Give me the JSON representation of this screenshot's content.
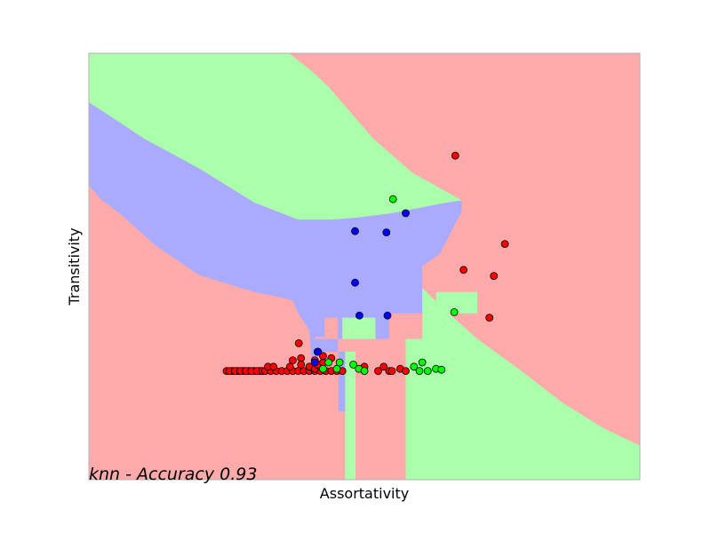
{
  "chart_data": {
    "type": "scatter",
    "title": "",
    "xlabel": "Assortativity",
    "ylabel": "Transitivity",
    "annotation": "knn - Accuracy 0.93",
    "xlim": [
      0,
      1
    ],
    "ylim": [
      0,
      1
    ],
    "xticks": "none",
    "yticks": "none",
    "grid": false,
    "legend": "none",
    "colors": {
      "red_region": "#FFAAAA",
      "green_region": "#AAFFAA",
      "blue_region": "#AAAAFF",
      "red_points": "#FF0000",
      "green_points": "#00FF00",
      "blue_points": "#0000FF",
      "axes_edge": "#B0B0B0"
    },
    "decision_regions": [
      {
        "class": "green",
        "polygon": [
          [
            0,
            1
          ],
          [
            0.363,
            1
          ],
          [
            0.403,
            0.96
          ],
          [
            0.436,
            0.92
          ],
          [
            0.476,
            0.86
          ],
          [
            0.516,
            0.8
          ],
          [
            0.587,
            0.72
          ],
          [
            0.677,
            0.655
          ],
          [
            0.65,
            0.65
          ],
          [
            0.55,
            0.625
          ],
          [
            0.49,
            0.615
          ],
          [
            0.44,
            0.61
          ],
          [
            0.38,
            0.61
          ],
          [
            0.3,
            0.65
          ],
          [
            0.2,
            0.73
          ],
          [
            0.1,
            0.8
          ],
          [
            0.03,
            0.86
          ],
          [
            0,
            0.885
          ]
        ]
      },
      {
        "class": "blue",
        "polygon": [
          [
            0,
            0.885
          ],
          [
            0.03,
            0.86
          ],
          [
            0.1,
            0.8
          ],
          [
            0.2,
            0.73
          ],
          [
            0.3,
            0.65
          ],
          [
            0.38,
            0.61
          ],
          [
            0.44,
            0.61
          ],
          [
            0.49,
            0.615
          ],
          [
            0.55,
            0.625
          ],
          [
            0.65,
            0.65
          ],
          [
            0.677,
            0.655
          ],
          [
            0.677,
            0.63
          ],
          [
            0.661,
            0.59
          ],
          [
            0.637,
            0.53
          ],
          [
            0.605,
            0.5
          ],
          [
            0.605,
            0.39
          ],
          [
            0.545,
            0.39
          ],
          [
            0.545,
            0.33
          ],
          [
            0.452,
            0.33
          ],
          [
            0.452,
            0.38
          ],
          [
            0.428,
            0.38
          ],
          [
            0.428,
            0.335
          ],
          [
            0.41,
            0.335
          ],
          [
            0.41,
            0.33
          ],
          [
            0.452,
            0.33
          ],
          [
            0.452,
            0.3
          ],
          [
            0.415,
            0.3
          ],
          [
            0.415,
            0.265
          ],
          [
            0.405,
            0.265
          ],
          [
            0.4,
            0.35
          ],
          [
            0.38,
            0.39
          ],
          [
            0.37,
            0.42
          ],
          [
            0.34,
            0.43
          ],
          [
            0.3,
            0.44
          ],
          [
            0.2,
            0.48
          ],
          [
            0.12,
            0.55
          ],
          [
            0.06,
            0.62
          ],
          [
            0.02,
            0.66
          ],
          [
            0,
            0.69
          ]
        ]
      },
      {
        "class": "green",
        "polygon": [
          [
            0.605,
            0.5
          ],
          [
            0.605,
            0.45
          ],
          [
            0.645,
            0.4
          ],
          [
            0.705,
            0.33
          ],
          [
            0.78,
            0.26
          ],
          [
            0.86,
            0.18
          ],
          [
            0.935,
            0.12
          ],
          [
            1,
            0.08
          ],
          [
            1,
            0
          ],
          [
            0.575,
            0
          ],
          [
            0.575,
            0.33
          ],
          [
            0.605,
            0.33
          ],
          [
            0.605,
            0.39
          ],
          [
            0.63,
            0.39
          ],
          [
            0.63,
            0.44
          ],
          [
            0.705,
            0.44
          ],
          [
            0.705,
            0.39
          ],
          [
            0.605,
            0.39
          ]
        ]
      },
      {
        "class": "green",
        "polygon": [
          [
            0.465,
            0.3
          ],
          [
            0.465,
            0
          ],
          [
            0.484,
            0
          ],
          [
            0.484,
            0.3
          ]
        ]
      },
      {
        "class": "green",
        "polygon": [
          [
            0.46,
            0.33
          ],
          [
            0.46,
            0.38
          ],
          [
            0.52,
            0.38
          ],
          [
            0.52,
            0.33
          ]
        ]
      },
      {
        "class": "blue",
        "polygon": [
          [
            0.453,
            0.3
          ],
          [
            0.453,
            0.16
          ],
          [
            0.465,
            0.16
          ],
          [
            0.465,
            0.3
          ]
        ]
      }
    ],
    "series": [
      {
        "class": "red",
        "points": [
          [
            0.25,
            0.255
          ],
          [
            0.26,
            0.255
          ],
          [
            0.27,
            0.255
          ],
          [
            0.28,
            0.255
          ],
          [
            0.29,
            0.255
          ],
          [
            0.3,
            0.255
          ],
          [
            0.31,
            0.255
          ],
          [
            0.255,
            0.255
          ],
          [
            0.265,
            0.255
          ],
          [
            0.275,
            0.255
          ],
          [
            0.285,
            0.255
          ],
          [
            0.295,
            0.255
          ],
          [
            0.305,
            0.255
          ],
          [
            0.315,
            0.255
          ],
          [
            0.32,
            0.255
          ],
          [
            0.33,
            0.255
          ],
          [
            0.34,
            0.255
          ],
          [
            0.35,
            0.255
          ],
          [
            0.36,
            0.255
          ],
          [
            0.37,
            0.255
          ],
          [
            0.38,
            0.255
          ],
          [
            0.39,
            0.255
          ],
          [
            0.4,
            0.255
          ],
          [
            0.41,
            0.255
          ],
          [
            0.42,
            0.255
          ],
          [
            0.43,
            0.255
          ],
          [
            0.44,
            0.255
          ],
          [
            0.45,
            0.255
          ],
          [
            0.46,
            0.255
          ],
          [
            0.325,
            0.265
          ],
          [
            0.335,
            0.265
          ],
          [
            0.365,
            0.265
          ],
          [
            0.4,
            0.265
          ],
          [
            0.41,
            0.26
          ],
          [
            0.42,
            0.265
          ],
          [
            0.415,
            0.27
          ],
          [
            0.425,
            0.275
          ],
          [
            0.37,
            0.28
          ],
          [
            0.385,
            0.285
          ],
          [
            0.41,
            0.28
          ],
          [
            0.425,
            0.29
          ],
          [
            0.44,
            0.285
          ],
          [
            0.415,
            0.3
          ],
          [
            0.381,
            0.32
          ],
          [
            0.385,
            0.27
          ],
          [
            0.5,
            0.265
          ],
          [
            0.525,
            0.255
          ],
          [
            0.535,
            0.265
          ],
          [
            0.545,
            0.255
          ],
          [
            0.55,
            0.255
          ],
          [
            0.565,
            0.26
          ],
          [
            0.575,
            0.255
          ],
          [
            0.665,
            0.76
          ],
          [
            0.755,
            0.553
          ],
          [
            0.68,
            0.492
          ],
          [
            0.735,
            0.478
          ],
          [
            0.727,
            0.38
          ]
        ]
      },
      {
        "class": "green",
        "points": [
          [
            0.552,
            0.658
          ],
          [
            0.45,
            0.26
          ],
          [
            0.455,
            0.275
          ],
          [
            0.48,
            0.27
          ],
          [
            0.49,
            0.26
          ],
          [
            0.5,
            0.255
          ],
          [
            0.59,
            0.265
          ],
          [
            0.6,
            0.255
          ],
          [
            0.605,
            0.275
          ],
          [
            0.615,
            0.255
          ],
          [
            0.63,
            0.26
          ],
          [
            0.64,
            0.258
          ],
          [
            0.425,
            0.26
          ],
          [
            0.435,
            0.275
          ],
          [
            0.663,
            0.393
          ]
        ]
      },
      {
        "class": "blue",
        "points": [
          [
            0.483,
            0.583
          ],
          [
            0.54,
            0.58
          ],
          [
            0.575,
            0.625
          ],
          [
            0.483,
            0.462
          ],
          [
            0.491,
            0.385
          ],
          [
            0.542,
            0.385
          ],
          [
            0.41,
            0.275
          ],
          [
            0.416,
            0.3
          ]
        ]
      }
    ]
  }
}
